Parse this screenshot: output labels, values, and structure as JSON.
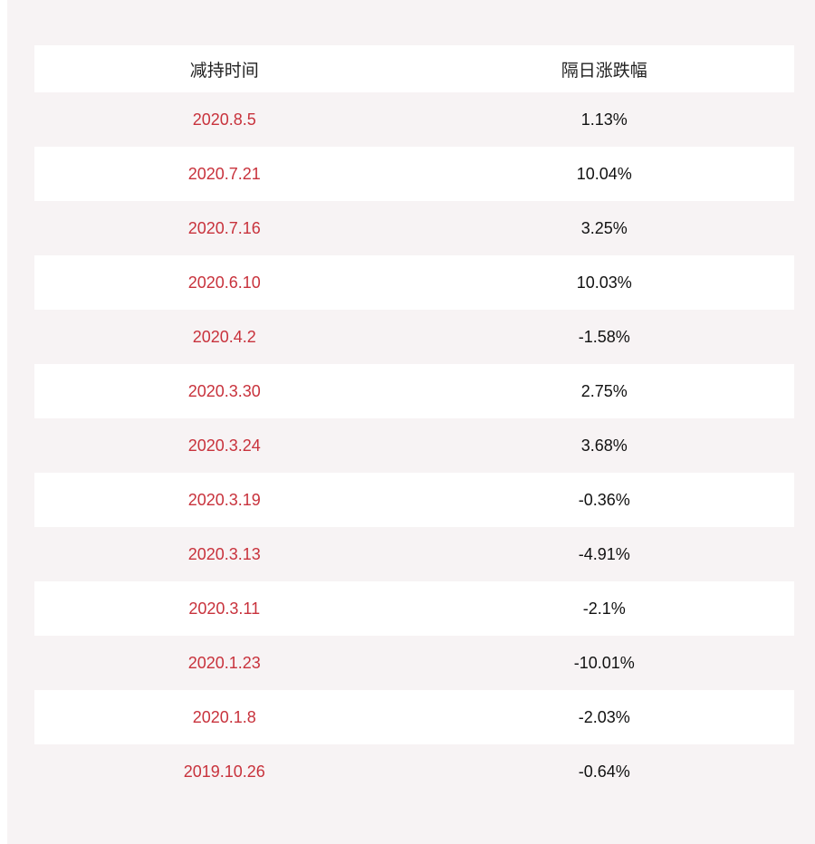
{
  "table": {
    "headers": [
      "减持时间",
      "隔日涨跌幅"
    ],
    "rows": [
      {
        "date": "2020.8.5",
        "change": "1.13%"
      },
      {
        "date": "2020.7.21",
        "change": "10.04%"
      },
      {
        "date": "2020.7.16",
        "change": "3.25%"
      },
      {
        "date": "2020.6.10",
        "change": "10.03%"
      },
      {
        "date": "2020.4.2",
        "change": "-1.58%"
      },
      {
        "date": "2020.3.30",
        "change": "2.75%"
      },
      {
        "date": "2020.3.24",
        "change": "3.68%"
      },
      {
        "date": "2020.3.19",
        "change": "-0.36%"
      },
      {
        "date": "2020.3.13",
        "change": "-4.91%"
      },
      {
        "date": "2020.3.11",
        "change": "-2.1%"
      },
      {
        "date": "2020.1.23",
        "change": "-10.01%"
      },
      {
        "date": "2020.1.8",
        "change": "-2.03%"
      },
      {
        "date": "2019.10.26",
        "change": "-0.64%"
      }
    ]
  },
  "colors": {
    "date_text": "#c8323c",
    "value_text": "#111111",
    "stripe": "#f7f3f4",
    "row_bg": "#ffffff"
  }
}
